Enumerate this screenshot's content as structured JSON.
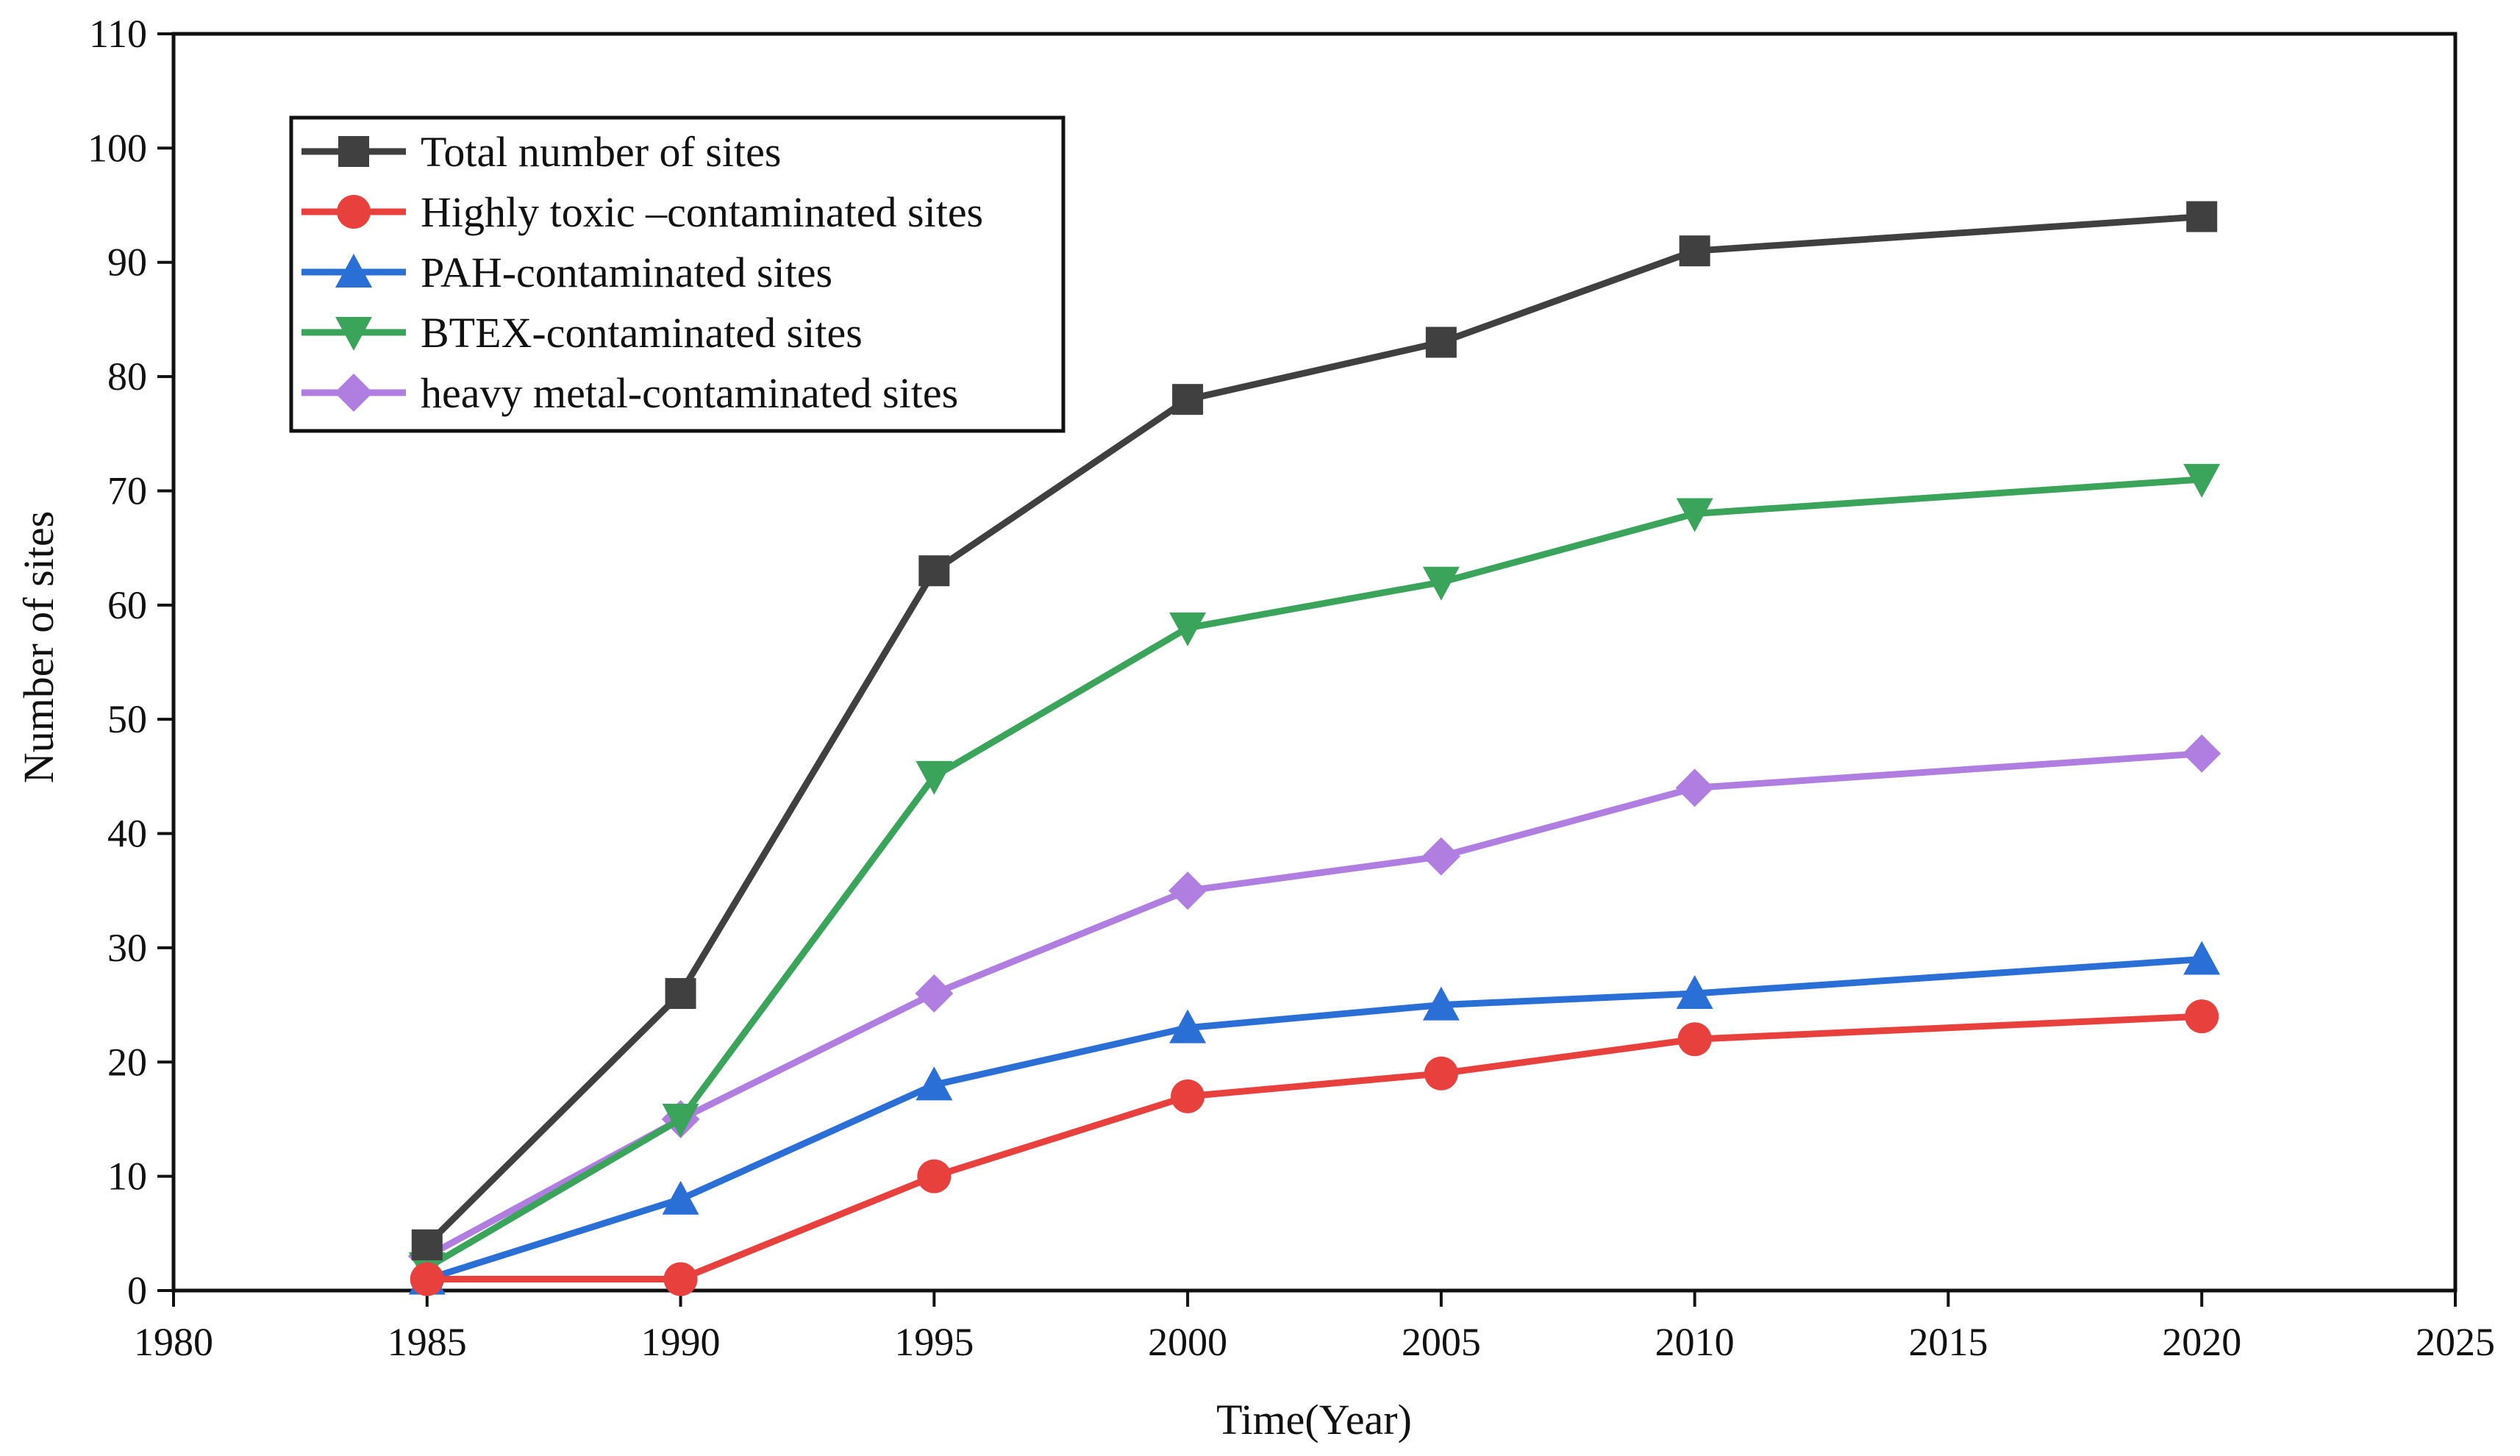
{
  "chart_data": {
    "type": "line",
    "title": "",
    "xlabel": "Time(Year)",
    "ylabel": "Number of sites",
    "xlim": [
      1980,
      2025
    ],
    "ylim": [
      0,
      110
    ],
    "xticks": [
      "1980",
      "1985",
      "1990",
      "1995",
      "2000",
      "2005",
      "2010",
      "2015",
      "2020",
      "2025"
    ],
    "yticks": [
      "0",
      "10",
      "20",
      "30",
      "40",
      "50",
      "60",
      "70",
      "80",
      "90",
      "100",
      "110"
    ],
    "grid": false,
    "legend_position": "top-left",
    "x": [
      1985,
      1990,
      1995,
      2000,
      2005,
      2010,
      2020
    ],
    "series": [
      {
        "name": "Total number of sites",
        "color": "#404040",
        "marker": "square",
        "values": [
          4,
          26,
          63,
          78,
          83,
          91,
          94
        ]
      },
      {
        "name": "Highly toxic –contaminated sites",
        "color": "#e8403c",
        "marker": "circle",
        "values": [
          1,
          1,
          10,
          17,
          19,
          22,
          24
        ]
      },
      {
        "name": "PAH-contaminated sites",
        "color": "#2a6fd6",
        "marker": "triangle-up",
        "values": [
          1,
          8,
          18,
          23,
          25,
          26,
          29
        ]
      },
      {
        "name": "BTEX-contaminated sites",
        "color": "#3aa55a",
        "marker": "triangle-down",
        "values": [
          2,
          15,
          45,
          58,
          62,
          68,
          71
        ]
      },
      {
        "name": "heavy metal-contaminated sites",
        "color": "#b07ee0",
        "marker": "diamond",
        "values": [
          3,
          15,
          26,
          35,
          38,
          44,
          47
        ]
      }
    ]
  }
}
